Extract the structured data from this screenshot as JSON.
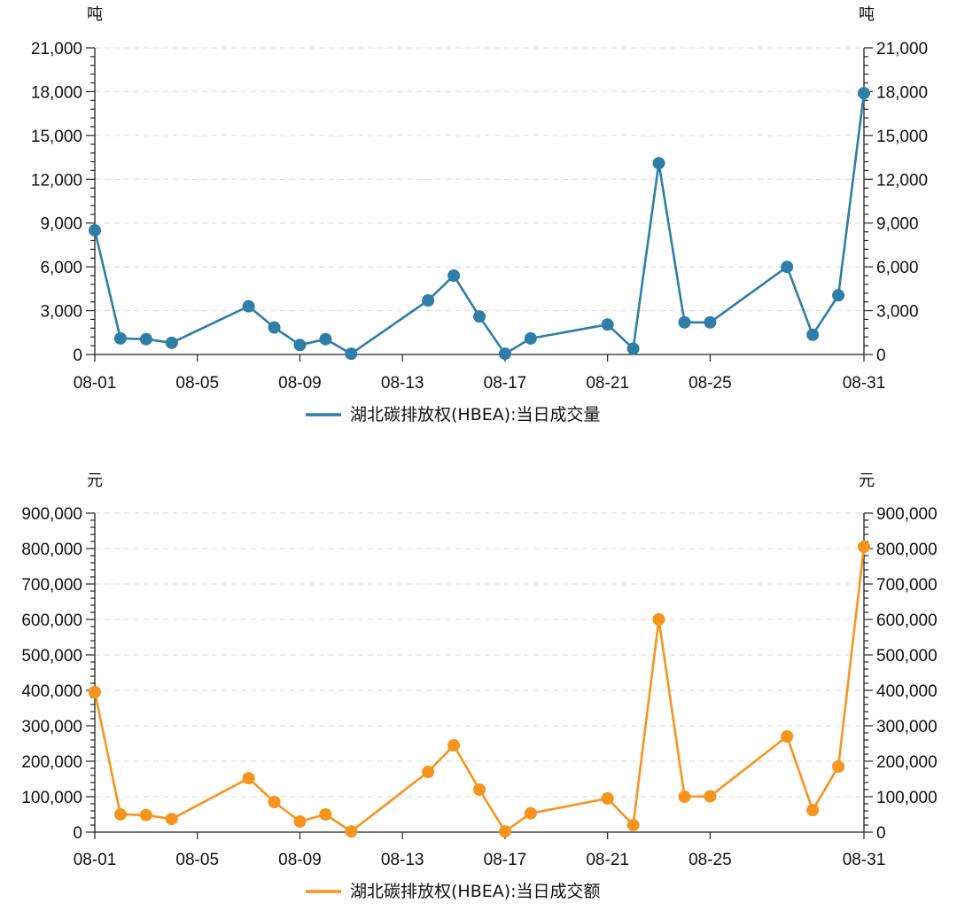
{
  "chart_data": [
    {
      "type": "line",
      "title": "",
      "unit_left": "吨",
      "unit_right": "吨",
      "ylim": [
        0,
        21000
      ],
      "y_ticks": [
        0,
        3000,
        6000,
        9000,
        12000,
        15000,
        18000,
        21000
      ],
      "y_tick_labels": [
        "0",
        "3,000",
        "6,000",
        "9,000",
        "12,000",
        "15,000",
        "18,000",
        "21,000"
      ],
      "x_tick_labels": [
        "08-01",
        "08-05",
        "08-09",
        "08-13",
        "08-17",
        "08-21",
        "08-25",
        "08-31"
      ],
      "x_tick_days": [
        1,
        5,
        9,
        13,
        17,
        21,
        25,
        31
      ],
      "color": "#2e7ea8",
      "legend": "湖北碳排放权(HBEA):当日成交量",
      "series": [
        {
          "name": "湖北碳排放权(HBEA):当日成交量",
          "x": [
            1,
            2,
            3,
            4,
            7,
            8,
            9,
            10,
            11,
            14,
            15,
            16,
            17,
            18,
            21,
            22,
            23,
            24,
            25,
            28,
            29,
            30,
            31
          ],
          "values": [
            8500,
            1100,
            1050,
            800,
            3300,
            1850,
            650,
            1050,
            50,
            3700,
            5400,
            2600,
            50,
            1100,
            2050,
            400,
            13100,
            2200,
            2200,
            6000,
            1350,
            4050,
            17900
          ]
        }
      ]
    },
    {
      "type": "line",
      "title": "",
      "unit_left": "元",
      "unit_right": "元",
      "ylim": [
        0,
        900000
      ],
      "y_ticks": [
        0,
        100000,
        200000,
        300000,
        400000,
        500000,
        600000,
        700000,
        800000,
        900000
      ],
      "y_tick_labels": [
        "0",
        "100,000",
        "200,000",
        "300,000",
        "400,000",
        "500,000",
        "600,000",
        "700,000",
        "800,000",
        "900,000"
      ],
      "x_tick_labels": [
        "08-01",
        "08-05",
        "08-09",
        "08-13",
        "08-17",
        "08-21",
        "08-25",
        "08-31"
      ],
      "x_tick_days": [
        1,
        5,
        9,
        13,
        17,
        21,
        25,
        31
      ],
      "color": "#f7941d",
      "legend": "湖北碳排放权(HBEA):当日成交额",
      "series": [
        {
          "name": "湖北碳排放权(HBEA):当日成交额",
          "x": [
            1,
            2,
            3,
            4,
            7,
            8,
            9,
            10,
            11,
            14,
            15,
            16,
            17,
            18,
            21,
            22,
            23,
            24,
            25,
            28,
            29,
            30,
            31
          ],
          "values": [
            395000,
            50000,
            48000,
            37000,
            152000,
            85000,
            30000,
            50000,
            2000,
            170000,
            245000,
            120000,
            2000,
            53000,
            95000,
            20000,
            600000,
            100000,
            101000,
            270000,
            62000,
            185000,
            805000
          ]
        }
      ]
    }
  ]
}
